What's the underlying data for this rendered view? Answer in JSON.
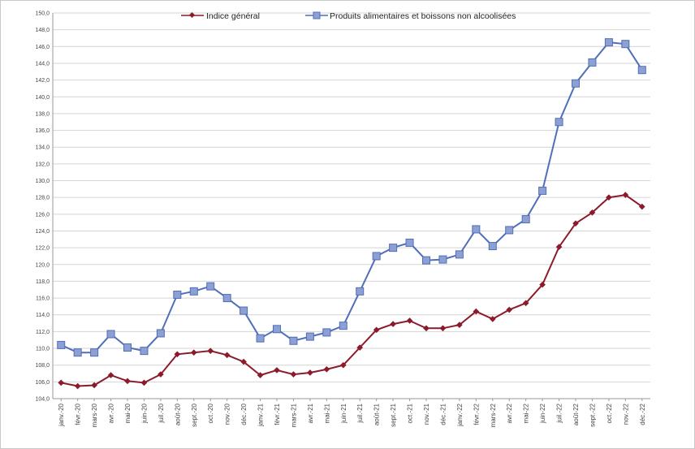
{
  "chart_data": {
    "type": "line",
    "title": "",
    "xlabel": "",
    "ylabel": "",
    "ylim": [
      104.0,
      150.0
    ],
    "ytick_step": 2,
    "grid": true,
    "legend_position": "top-center",
    "x": [
      "janv.-20",
      "févr.-20",
      "mars-20",
      "avr.-20",
      "mai-20",
      "juin-20",
      "juil.-20",
      "août-20",
      "sept.-20",
      "oct.-20",
      "nov.-20",
      "déc.-20",
      "janv.-21",
      "févr.-21",
      "mars-21",
      "avr.-21",
      "mai-21",
      "juin-21",
      "juil.-21",
      "août-21",
      "sept.-21",
      "oct.-21",
      "nov.-21",
      "déc.-21",
      "janv.-22",
      "févr.-22",
      "mars-22",
      "avr.-22",
      "mai-22",
      "juin-22",
      "juil.-22",
      "août-22",
      "sept.-22",
      "oct.-22",
      "nov.-22",
      "déc.-22"
    ],
    "series": [
      {
        "name": "Indice général",
        "color": "#8b1a2b",
        "marker": "diamond",
        "values": [
          105.9,
          105.5,
          105.6,
          106.8,
          106.1,
          105.9,
          106.9,
          109.3,
          109.5,
          109.7,
          109.2,
          108.4,
          106.8,
          107.4,
          106.9,
          107.1,
          107.5,
          108.0,
          110.1,
          112.2,
          112.9,
          113.3,
          112.4,
          112.4,
          112.8,
          114.4,
          113.5,
          114.6,
          115.4,
          117.6,
          122.1,
          124.9,
          126.2,
          128.0,
          128.3,
          126.9
        ]
      },
      {
        "name": "Produits alimentaires et boissons non alcoolisées",
        "color": "#4f6fb8",
        "marker": "square",
        "values": [
          110.4,
          109.5,
          109.5,
          111.7,
          110.1,
          109.7,
          111.8,
          116.4,
          116.8,
          117.4,
          116.0,
          114.5,
          111.2,
          112.3,
          110.9,
          111.4,
          111.9,
          112.7,
          116.8,
          121.0,
          122.0,
          122.6,
          120.5,
          120.6,
          121.2,
          124.2,
          122.2,
          124.1,
          125.4,
          128.8,
          137.0,
          141.6,
          144.1,
          146.5,
          146.3,
          143.2
        ]
      }
    ]
  }
}
